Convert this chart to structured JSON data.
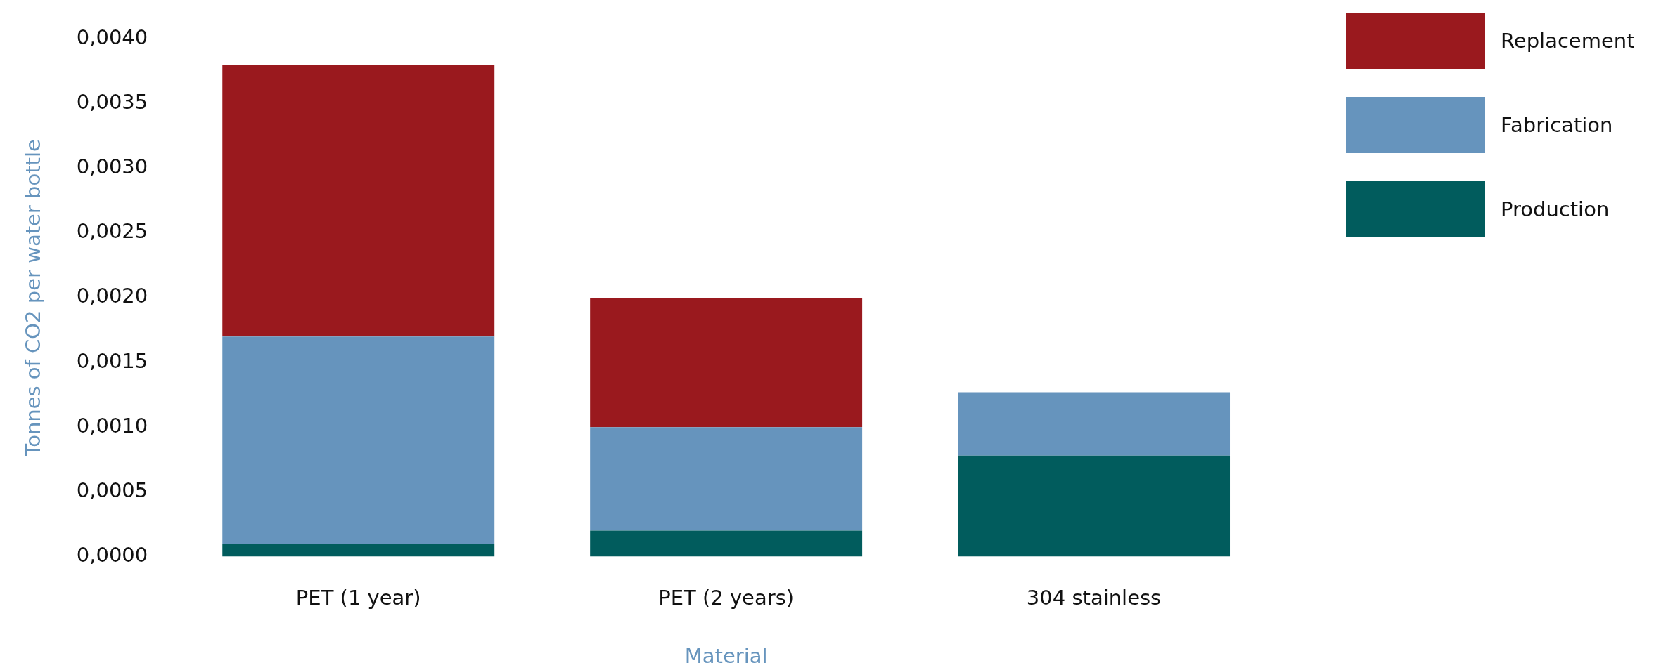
{
  "chart_data": {
    "type": "bar",
    "stacked": true,
    "xlabel": "Material",
    "ylabel": "Tonnes of CO2 per water bottle",
    "categories": [
      "PET (1 year)",
      "PET (2 years)",
      "304 stainless"
    ],
    "series": [
      {
        "name": "Production",
        "color": "#015c5d",
        "values": [
          0.0001,
          0.0002,
          0.00078
        ]
      },
      {
        "name": "Fabrication",
        "color": "#6694bd",
        "values": [
          0.0016,
          0.0008,
          0.00049
        ]
      },
      {
        "name": "Replacement",
        "color": "#9a191e",
        "values": [
          0.0021,
          0.001,
          null
        ]
      }
    ],
    "ylim": [
      0,
      0.004
    ],
    "yticks": [
      {
        "value": 0,
        "label": "0,0000"
      },
      {
        "value": 0.0005,
        "label": "0,0005"
      },
      {
        "value": 0.001,
        "label": "0,0010"
      },
      {
        "value": 0.0015,
        "label": "0,0015"
      },
      {
        "value": 0.002,
        "label": "0,0020"
      },
      {
        "value": 0.0025,
        "label": "0,0025"
      },
      {
        "value": 0.003,
        "label": "0,0030"
      },
      {
        "value": 0.0035,
        "label": "0,0035"
      },
      {
        "value": 0.004,
        "label": "0,0040"
      }
    ],
    "grid": false,
    "legend": "top right"
  }
}
